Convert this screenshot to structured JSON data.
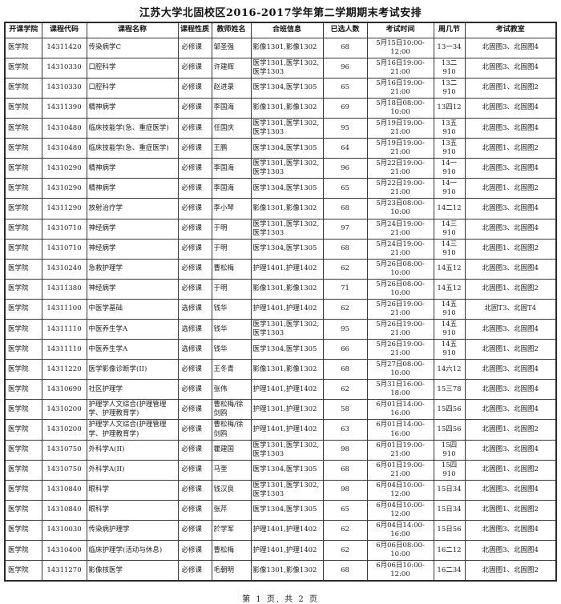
{
  "title": "江苏大学北固校区2016-2017学年第二学期期末考试安排",
  "footer": "第 1 页, 共 2 页",
  "table": {
    "headers": [
      "开课学院",
      "课程代码",
      "课程名称",
      "课程性质",
      "教师姓名",
      "合班信息",
      "已选人数",
      "考试时间",
      "周几节",
      "考试教室"
    ],
    "column_keys": [
      "college",
      "course-code",
      "course-name",
      "course-type",
      "teacher",
      "class-group",
      "enrolled",
      "exam-time",
      "week-period",
      "exam-room"
    ],
    "rows": [
      [
        "医学院",
        "14311420",
        "传染病学C",
        "必修课",
        "邹圣强",
        "影像1301,影像1302",
        "68",
        "5月15日10:00-12:00",
        "13一34",
        "北固图3、北固图4"
      ],
      [
        "医学院",
        "14310330",
        "口腔科学",
        "必修课",
        "许建辉",
        "医学1301,医学1302,医学1303",
        "96",
        "5月16日19:00-21:00",
        "13二910",
        "北固图3、北固图4"
      ],
      [
        "医学院",
        "14310330",
        "口腔科学",
        "必修课",
        "赵进录",
        "医学1304,医学1305",
        "65",
        "5月16日19:00-21:00",
        "13二910",
        "北固图1、北固图2"
      ],
      [
        "医学院",
        "14311390",
        "精神病学",
        "必修课",
        "李国海",
        "影像1301,影像1302",
        "69",
        "5月18日08:00-10:00",
        "13四12",
        "北固图3、北固图4"
      ],
      [
        "医学院",
        "14310480",
        "临床技能学(急、重症医学)",
        "必修课",
        "任国庆",
        "医学1301,医学1302,医学1303",
        "95",
        "5月19日19:00-21:00",
        "13五910",
        "北固图3、北固图4"
      ],
      [
        "医学院",
        "14310480",
        "临床技能学(急、重症医学)",
        "必修课",
        "王鹏",
        "医学1304,医学1305",
        "64",
        "5月19日19:00-21:00",
        "13五910",
        "北固图1、北固图2"
      ],
      [
        "医学院",
        "14310290",
        "精神病学",
        "必修课",
        "李国海",
        "医学1301,医学1302,医学1303",
        "96",
        "5月22日19:00-21:00",
        "14一910",
        "北固图3、北固图4"
      ],
      [
        "医学院",
        "14310290",
        "精神病学",
        "必修课",
        "李国海",
        "医学1304,医学1305",
        "65",
        "5月22日19:00-21:00",
        "14一910",
        "北固图1、北固图2"
      ],
      [
        "医学院",
        "14311290",
        "放射治疗学",
        "必修课",
        "李小琴",
        "影像1301,影像1302",
        "68",
        "5月23日08:00-10:00",
        "14二12",
        "北固图3、北固图4"
      ],
      [
        "医学院",
        "14310710",
        "神经病学",
        "必修课",
        "于明",
        "医学1301,医学1302,医学1303",
        "97",
        "5月24日19:00-21:00",
        "14三910",
        "北固图3、北固图4"
      ],
      [
        "医学院",
        "14310710",
        "神经病学",
        "必修课",
        "于明",
        "医学1304,医学1305",
        "68",
        "5月24日19:00-21:00",
        "14三910",
        "北固图1、北固图2"
      ],
      [
        "医学院",
        "14310240",
        "急救护理学",
        "必修课",
        "曹松梅",
        "护理1401,护理1402",
        "62",
        "5月26日08:00-10:00",
        "14五12",
        "北固图3、北固图4"
      ],
      [
        "医学院",
        "14311380",
        "神经病学",
        "必修课",
        "于明",
        "影像1301,影像1302",
        "71",
        "5月26日08:00-10:00",
        "14五12",
        "北固图1、北固图2"
      ],
      [
        "医学院",
        "14311100",
        "中医学基础",
        "选修课",
        "钱华",
        "护理1401,护理1402",
        "62",
        "5月26日19:00-21:00",
        "14五910",
        "北固T3、北固T4"
      ],
      [
        "医学院",
        "14311110",
        "中医养生学A",
        "选修课",
        "钱华",
        "医学1301,医学1302,医学1303",
        "95",
        "5月26日19:00-21:00",
        "14五910",
        "北固图3、北固图4"
      ],
      [
        "医学院",
        "14311110",
        "中医养生学A",
        "选修课",
        "钱华",
        "医学1304,医学1305",
        "66",
        "5月26日19:00-21:00",
        "14五910",
        "北固图1、北固图2"
      ],
      [
        "医学院",
        "14311220",
        "医学影像诊断学(II)",
        "必修课",
        "王冬青",
        "影像1301,影像1302",
        "68",
        "5月27日08:00-10:00",
        "14六12",
        "北固图3、北固图4"
      ],
      [
        "医学院",
        "14310690",
        "社区护理学",
        "必修课",
        "张伟",
        "护理1401,护理1402",
        "62",
        "5月31日16:00-18:00",
        "15三78",
        "北固图3、北固图4"
      ],
      [
        "医学院",
        "14310200",
        "护理学人文综合(护理管理学、护理教育学)",
        "必修课",
        "曹松梅/徐剑鸥",
        "护理1301,护理1302",
        "58",
        "6月01日14:00-16:00",
        "15四56",
        "北固图3、北固图4"
      ],
      [
        "医学院",
        "14310200",
        "护理学人文综合(护理管理学、护理教育学)",
        "必修课",
        "曹松梅/徐剑鸥",
        "护理1401,护理1402",
        "63",
        "6月01日14:00-16:00",
        "15四56",
        "北固图1、北固图2"
      ],
      [
        "医学院",
        "14310750",
        "外科学A(II)",
        "必修课",
        "瞿建国",
        "医学1301,医学1302,医学1303",
        "98",
        "6月01日19:00-21:00",
        "15四910",
        "北固图3、北固图4"
      ],
      [
        "医学院",
        "14310750",
        "外科学A(II)",
        "必修课",
        "马奎",
        "医学1304,医学1305",
        "68",
        "6月01日19:00-21:00",
        "15四910",
        "北固图1、北固图2"
      ],
      [
        "医学院",
        "14310840",
        "眼科学",
        "必修课",
        "钱汉良",
        "医学1301,医学1302,医学1303",
        "98",
        "6月04日10:00-12:00",
        "15日34",
        "北固图3、北固图4"
      ],
      [
        "医学院",
        "14310840",
        "眼科学",
        "必修课",
        "张芹",
        "医学1304,医学1305",
        "65",
        "6月04日10:00-12:00",
        "15日34",
        "北固图1、北固图2"
      ],
      [
        "医学院",
        "14310030",
        "传染病护理学",
        "必修课",
        "於学军",
        "护理1401,护理1402",
        "62",
        "6月04日14:00-16:00",
        "15日56",
        "北固图3、北固图4"
      ],
      [
        "医学院",
        "14310400",
        "临床护理学(活动与休息)",
        "必修课",
        "曹松梅",
        "护理1401,护理1402",
        "62",
        "6月06日08:00-10:00",
        "16二12",
        "北固图3、北固图4"
      ],
      [
        "医学院",
        "14311270",
        "影像核医学",
        "必修课",
        "毛朝明",
        "影像1301,影像1302",
        "68",
        "6月06日10:00-12:00",
        "16二34",
        "北固图1、北固图2"
      ]
    ]
  }
}
